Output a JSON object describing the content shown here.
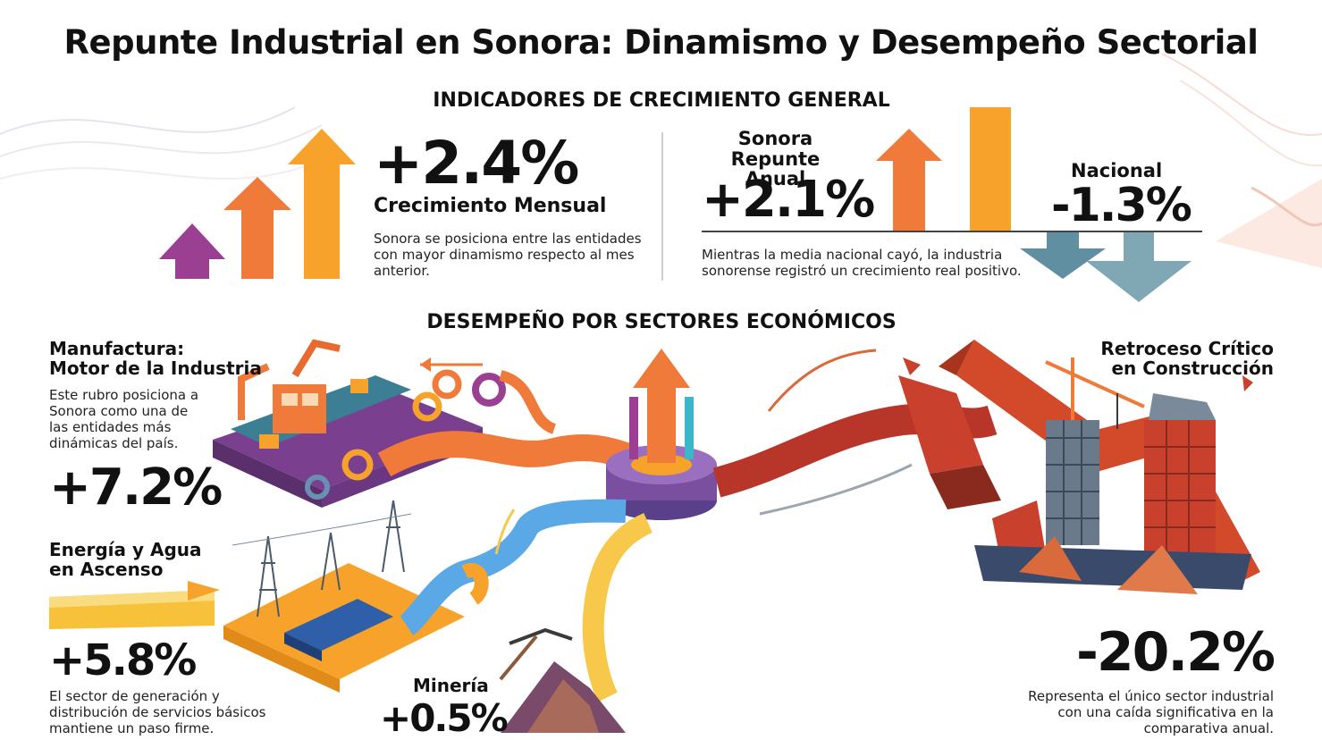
{
  "title": "Repunte Industrial en Sonora: Dinamismo y Desempeño Sectorial",
  "general": {
    "heading": "INDICADORES DE CRECIMIENTO GENERAL",
    "monthly": {
      "value": "+2.4%",
      "label": "Crecimiento Mensual",
      "description": "Sonora se posiciona entre las entidades con mayor dinamismo respecto al mes anterior."
    },
    "annual": {
      "sonora_label_line1": "Sonora",
      "sonora_label_line2": "Repunte Anual",
      "sonora_value": "+2.1%",
      "national_label": "Nacional",
      "national_value": "-1.3%",
      "description": "Mientras la media nacional cayó, la industria sonorense registró un crecimiento real positivo."
    }
  },
  "sectors": {
    "heading": "DESEMPEÑO POR SECTORES ECONÓMICOS",
    "manufactura": {
      "title_line1": "Manufactura:",
      "title_line2": "Motor de la Industria",
      "description": "Este rubro posiciona a Sonora como una de las entidades más dinámicas del país.",
      "value": "+7.2%"
    },
    "energia": {
      "title_line1": "Energía y Agua",
      "title_line2": "en Ascenso",
      "value": "+5.8%",
      "description": "El sector de generación y distribución de servicios básicos mantiene un paso firme."
    },
    "mineria": {
      "title": "Minería",
      "value": "+0.5%"
    },
    "construccion": {
      "title_line1": "Retroceso Crítico",
      "title_line2": "en Construcción",
      "value": "-20.2%",
      "description": "Representa el único sector industrial con una caída significativa en la comparativa anual."
    }
  },
  "colors": {
    "purple": "#9b3f93",
    "orange": "#f07a3a",
    "amber": "#f7a22a",
    "slate": "#5f8fa0",
    "red": "#c9412d"
  }
}
